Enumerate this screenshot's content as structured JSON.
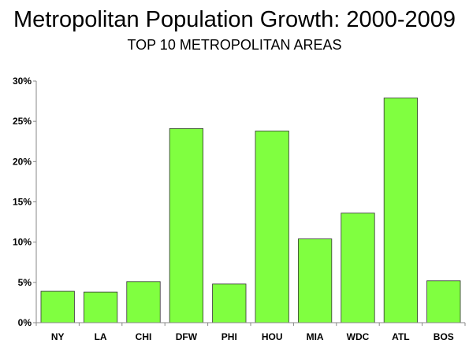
{
  "chart_data": {
    "type": "bar",
    "title": "Metropolitan Population Growth: 2000-2009",
    "subtitle": "TOP 10 METROPOLITAN AREAS",
    "categories": [
      "NY",
      "LA",
      "CHI",
      "DFW",
      "PHI",
      "HOU",
      "MIA",
      "WDC",
      "ATL",
      "BOS"
    ],
    "values": [
      3.9,
      3.8,
      5.1,
      24.1,
      4.8,
      23.8,
      10.4,
      13.6,
      27.9,
      5.2
    ],
    "ylim": [
      0,
      30
    ],
    "yticks": [
      0,
      5,
      10,
      15,
      20,
      25,
      30
    ],
    "ytick_labels": [
      "0%",
      "5%",
      "10%",
      "15%",
      "20%",
      "25%",
      "30%"
    ],
    "xlabel": "",
    "ylabel": "",
    "grid": false,
    "bar_color": "#80ff40"
  }
}
